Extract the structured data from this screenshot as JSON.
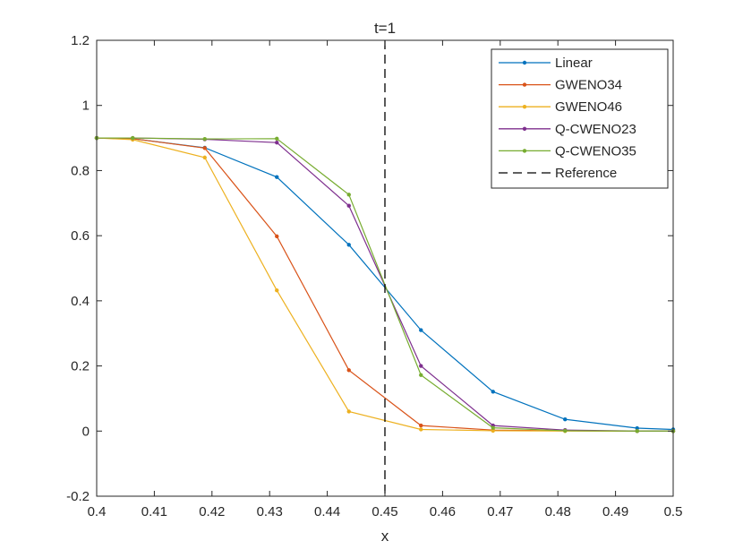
{
  "chart_data": {
    "type": "line",
    "title": "t=1",
    "xlabel": "x",
    "ylabel": "",
    "xlim": [
      0.4,
      0.5
    ],
    "ylim": [
      -0.2,
      1.2
    ],
    "xticks": [
      0.4,
      0.41,
      0.42,
      0.43,
      0.44,
      0.45,
      0.46,
      0.47,
      0.48,
      0.49,
      0.5
    ],
    "xtick_labels": [
      "0.4",
      "0.41",
      "0.42",
      "0.43",
      "0.44",
      "0.45",
      "0.46",
      "0.47",
      "0.48",
      "0.49",
      "0.5"
    ],
    "yticks": [
      -0.2,
      0,
      0.2,
      0.4,
      0.6,
      0.8,
      1,
      1.2
    ],
    "ytick_labels": [
      "-0.2",
      "0",
      "0.2",
      "0.4",
      "0.6",
      "0.8",
      "1",
      "1.2"
    ],
    "grid": false,
    "legend_position": "top-right",
    "x": [
      0.4,
      0.40625,
      0.41875,
      0.43125,
      0.44375,
      0.45625,
      0.46875,
      0.48125,
      0.49375,
      0.5
    ],
    "series": [
      {
        "name": "Linear",
        "color": "#0072BD",
        "marker": "dot",
        "dash": "solid",
        "values": [
          0.9,
          0.898,
          0.87,
          0.78,
          0.572,
          0.31,
          0.121,
          0.036,
          0.009,
          0.005
        ]
      },
      {
        "name": "GWENO34",
        "color": "#D95319",
        "marker": "dot",
        "dash": "solid",
        "values": [
          0.9,
          0.898,
          0.869,
          0.598,
          0.187,
          0.017,
          0.003,
          0.001,
          0.0,
          0.0
        ]
      },
      {
        "name": "GWENO46",
        "color": "#EDB120",
        "marker": "dot",
        "dash": "solid",
        "values": [
          0.9,
          0.895,
          0.84,
          0.432,
          0.06,
          0.005,
          0.001,
          0.0,
          0.0,
          0.0
        ]
      },
      {
        "name": "Q-CWENO23",
        "color": "#7E2F8E",
        "marker": "dot",
        "dash": "solid",
        "values": [
          0.9,
          0.9,
          0.896,
          0.886,
          0.692,
          0.2,
          0.017,
          0.003,
          0.0,
          0.0
        ]
      },
      {
        "name": "Q-CWENO35",
        "color": "#77AC30",
        "marker": "dot",
        "dash": "solid",
        "values": [
          0.9,
          0.9,
          0.897,
          0.898,
          0.726,
          0.172,
          0.01,
          0.001,
          0.0,
          0.0
        ]
      },
      {
        "name": "Reference",
        "color": "#000000",
        "marker": "none",
        "dash": "dashed",
        "vertical_x": 0.45
      }
    ]
  }
}
